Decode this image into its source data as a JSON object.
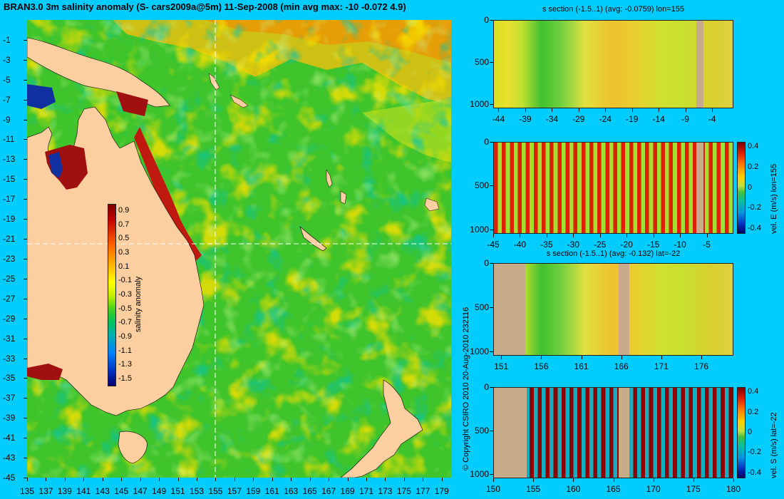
{
  "main_title": "BRAN3.0 3m salinity anomaly (S- cars2009a@5m) 11-Sep-2008 (min avg max: -10 -0.072 4.9)",
  "copyright": "© Copyright CSIRO 2010   20-Aug-2010 232116",
  "colors": {
    "background": "#00ccff",
    "land": "#fdcfa0",
    "section_land": "#c8ab8a"
  },
  "chart_data": [
    {
      "type": "heatmap",
      "title": "BRAN3.0 3m salinity anomaly (S- cars2009a@5m) 11-Sep-2008 (min avg max: -10 -0.072 4.9)",
      "x_ticks": [
        "135",
        "137",
        "139",
        "141",
        "143",
        "145",
        "147",
        "149",
        "151",
        "153",
        "155",
        "157",
        "159",
        "161",
        "163",
        "165",
        "167",
        "169",
        "171",
        "173",
        "175",
        "177",
        "179"
      ],
      "y_ticks": [
        "-1",
        "-3",
        "-5",
        "-7",
        "-9",
        "-11",
        "-13",
        "-15",
        "-17",
        "-19",
        "-21",
        "-23",
        "-25",
        "-27",
        "-29",
        "-31",
        "-33",
        "-35",
        "-37",
        "-39",
        "-41",
        "-43",
        "-45"
      ],
      "xlim": [
        135,
        180
      ],
      "ylim": [
        -45,
        1
      ],
      "crosshair": {
        "lon": 155,
        "lat": -22
      },
      "stats": {
        "min": -10,
        "avg": -0.072,
        "max": 4.9
      },
      "colorbar": {
        "label": "salinity anomaly",
        "ticks": [
          "0.9",
          "0.7",
          "0.5",
          "0.3",
          "0.1",
          "-0.1",
          "-0.3",
          "-0.5",
          "-0.7",
          "-0.9",
          "-1.1",
          "-1.3",
          "-1.5"
        ],
        "range": [
          -1.6,
          1.0
        ]
      }
    },
    {
      "type": "heatmap",
      "title": "s section (-1.5..1) (avg: -0.0759) lon=155",
      "x_ticks": [
        "-44",
        "-39",
        "-34",
        "-29",
        "-24",
        "-19",
        "-14",
        "-9",
        "-4"
      ],
      "y_ticks": [
        "0",
        "500",
        "1000"
      ],
      "xlim": [
        -45,
        0
      ],
      "ylim": [
        1050,
        0
      ]
    },
    {
      "type": "heatmap",
      "title": "",
      "x_ticks": [
        "-45",
        "-40",
        "-35",
        "-30",
        "-25",
        "-20",
        "-15",
        "-10",
        "-5"
      ],
      "y_ticks": [
        "0",
        "500",
        "1000"
      ],
      "xlim": [
        -45,
        0
      ],
      "ylim": [
        1050,
        0
      ],
      "colorbar": {
        "label": "vel. E (m/s) lon=155",
        "ticks": [
          "0.4",
          "0.2",
          "0",
          "-0.2",
          "-0.4"
        ],
        "range": [
          -0.45,
          0.45
        ]
      }
    },
    {
      "type": "heatmap",
      "title": "s section (-1.5..1) (avg: -0.132) lat=-22",
      "x_ticks": [
        "151",
        "156",
        "161",
        "166",
        "171",
        "176"
      ],
      "y_ticks": [
        "0",
        "500",
        "1000"
      ],
      "xlim": [
        150,
        180
      ],
      "ylim": [
        1050,
        0
      ]
    },
    {
      "type": "heatmap",
      "title": "",
      "x_ticks": [
        "150",
        "155",
        "160",
        "165",
        "170",
        "175",
        "180"
      ],
      "y_ticks": [
        "0",
        "500",
        "1000"
      ],
      "xlim": [
        150,
        180
      ],
      "ylim": [
        1050,
        0
      ],
      "colorbar": {
        "label": "vel. S (m/s) lat=-22",
        "ticks": [
          "0.4",
          "0.2",
          "0",
          "-0.2",
          "-0.4"
        ],
        "range": [
          -0.45,
          0.45
        ]
      }
    }
  ]
}
